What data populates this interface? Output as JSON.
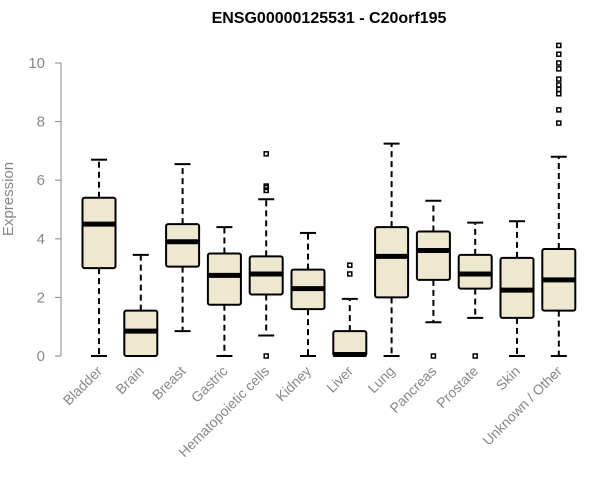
{
  "chart_data": {
    "type": "boxplot",
    "title": "ENSG00000125531 - C20orf195",
    "ylabel": "Expression",
    "xlabel": "",
    "ylim": [
      0,
      10.7
    ],
    "yticks": [
      "0",
      "2",
      "4",
      "6",
      "8",
      "10"
    ],
    "grid": false,
    "legend": "none",
    "box_color": "#EEE8D0",
    "categories": [
      "Bladder",
      "Brain",
      "Breast",
      "Gastric",
      "Hematopoietic cells",
      "Kidney",
      "Liver",
      "Lung",
      "Pancreas",
      "Prostate",
      "Skin",
      "Unknown / Other"
    ],
    "boxes": [
      {
        "min": 0.0,
        "q1": 3.0,
        "median": 4.5,
        "q3": 5.4,
        "max": 6.7,
        "outliers": []
      },
      {
        "min": 0.0,
        "q1": 0.0,
        "median": 0.85,
        "q3": 1.55,
        "max": 3.45,
        "outliers": []
      },
      {
        "min": 0.85,
        "q1": 3.05,
        "median": 3.9,
        "q3": 4.5,
        "max": 6.55,
        "outliers": []
      },
      {
        "min": 0.0,
        "q1": 1.75,
        "median": 2.75,
        "q3": 3.5,
        "max": 4.4,
        "outliers": []
      },
      {
        "min": 0.7,
        "q1": 2.1,
        "median": 2.8,
        "q3": 3.4,
        "max": 5.35,
        "outliers": [
          0.0,
          5.65,
          5.75,
          5.8,
          6.9
        ]
      },
      {
        "min": 0.0,
        "q1": 1.6,
        "median": 2.3,
        "q3": 2.95,
        "max": 4.2,
        "outliers": []
      },
      {
        "min": 0.0,
        "q1": 0.0,
        "median": 0.05,
        "q3": 0.85,
        "max": 1.95,
        "outliers": [
          2.8,
          3.1
        ]
      },
      {
        "min": 0.0,
        "q1": 2.0,
        "median": 3.4,
        "q3": 4.4,
        "max": 7.25,
        "outliers": []
      },
      {
        "min": 1.15,
        "q1": 2.6,
        "median": 3.6,
        "q3": 4.25,
        "max": 5.3,
        "outliers": [
          0.0
        ]
      },
      {
        "min": 1.3,
        "q1": 2.3,
        "median": 2.8,
        "q3": 3.45,
        "max": 4.55,
        "outliers": [
          0.0
        ]
      },
      {
        "min": 0.0,
        "q1": 1.3,
        "median": 2.25,
        "q3": 3.35,
        "max": 4.6,
        "outliers": []
      },
      {
        "min": 0.0,
        "q1": 1.55,
        "median": 2.6,
        "q3": 3.65,
        "max": 6.8,
        "outliers": [
          7.95,
          8.4,
          8.95,
          9.1,
          9.25,
          9.45,
          9.8,
          10.0,
          10.3,
          10.6
        ]
      }
    ]
  }
}
